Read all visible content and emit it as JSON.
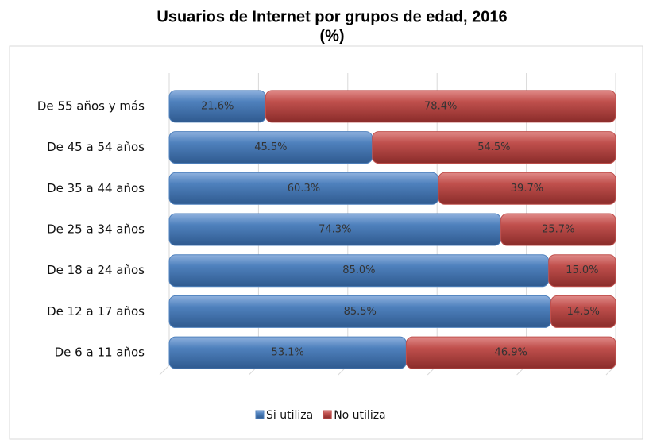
{
  "chart_data": {
    "type": "stacked_barh",
    "title": "Usuarios de Internet por grupos de edad, 2016",
    "subtitle": "(%)",
    "categories": [
      "De 55 años y más",
      "De 45 a 54 años",
      "De 35 a 44 años",
      "De 25 a 34 años",
      "De 18 a 24 años",
      "De 12 a 17 años",
      "De 6 a 11 años"
    ],
    "series": [
      {
        "name": "Si utiliza",
        "color": "#4f81bd",
        "values": [
          21.6,
          45.5,
          60.3,
          74.3,
          85.0,
          85.5,
          53.1
        ],
        "value_labels": [
          "21.6%",
          "45.5%",
          "60.3%",
          "74.3%",
          "85.0%",
          "85.5%",
          "53.1%"
        ]
      },
      {
        "name": "No utiliza",
        "color": "#c0504d",
        "values": [
          78.4,
          54.5,
          39.7,
          25.7,
          15.0,
          14.5,
          46.9
        ],
        "value_labels": [
          "78.4%",
          "54.5%",
          "39.7%",
          "25.7%",
          "15.0%",
          "14.5%",
          "46.9%"
        ]
      }
    ],
    "xlim": [
      0,
      100
    ],
    "xticks": [
      0,
      20,
      40,
      60,
      80,
      100
    ],
    "grid": true,
    "legend": "bottom"
  }
}
